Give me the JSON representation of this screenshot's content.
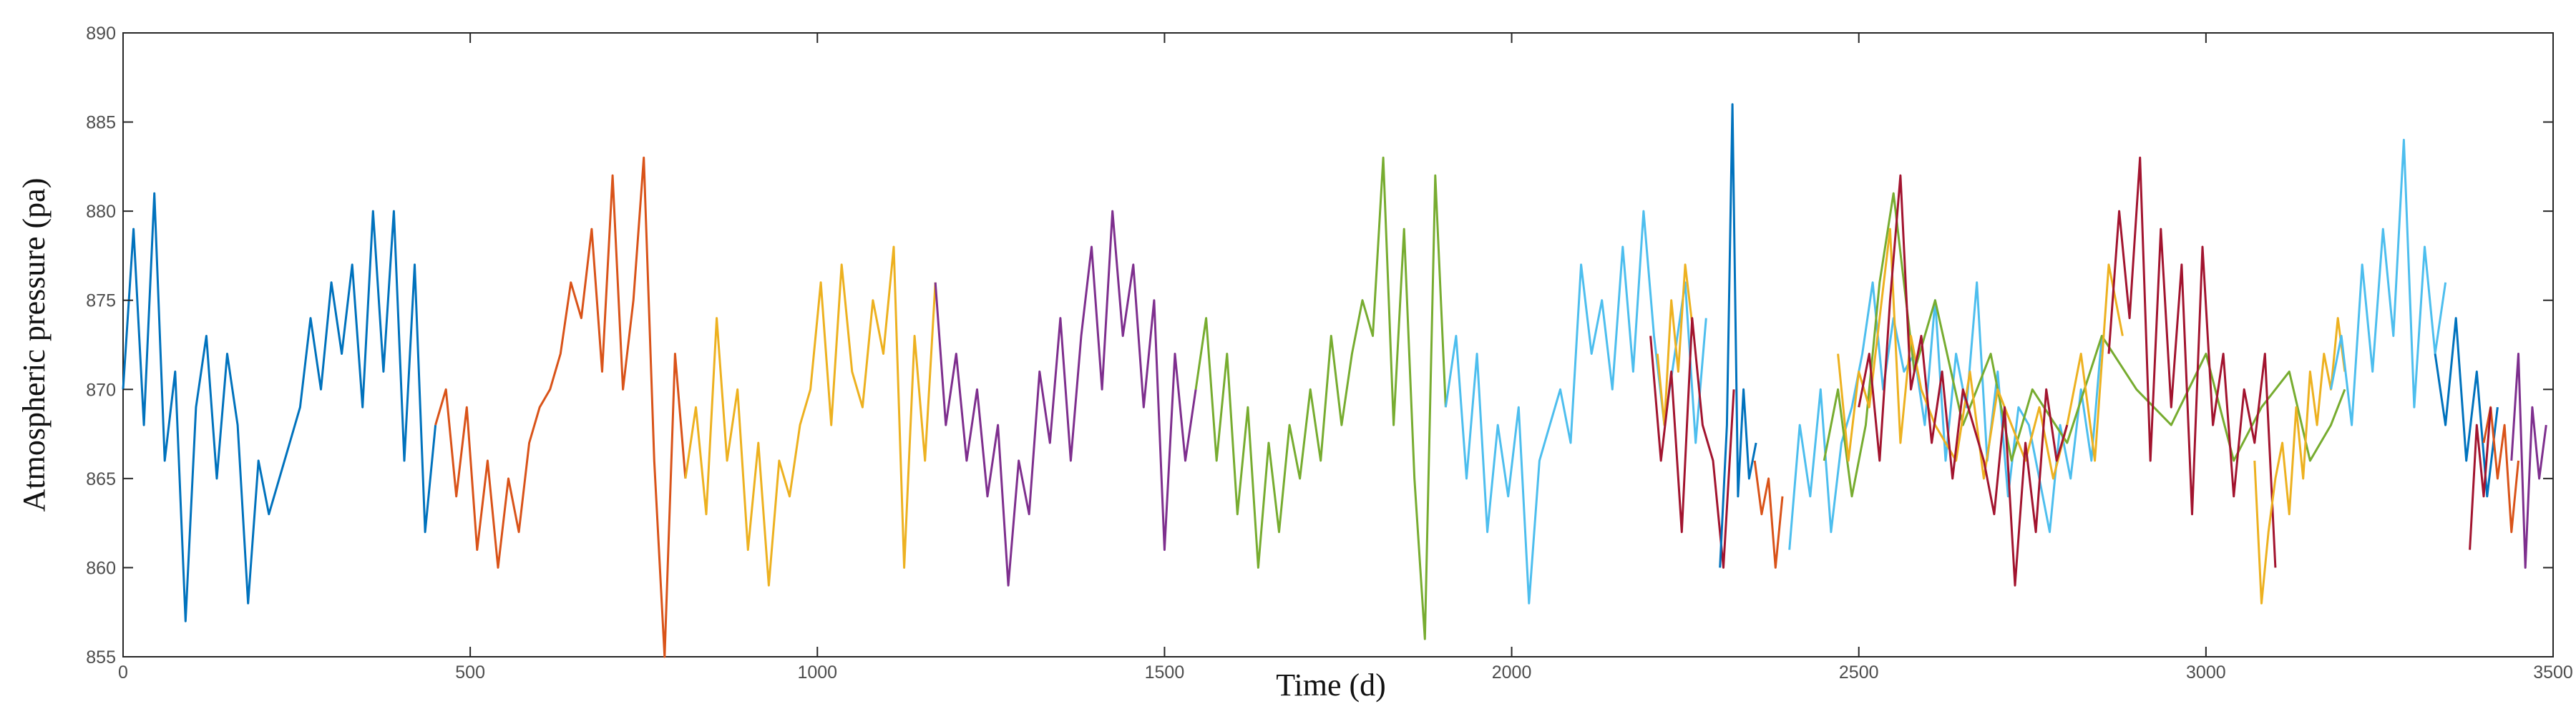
{
  "chart_data": {
    "type": "line",
    "title": "",
    "xlabel": "Time (d)",
    "ylabel": "Atmospheric pressure (pa)",
    "xlim": [
      0,
      3500
    ],
    "ylim": [
      855,
      890
    ],
    "xticks": [
      0,
      500,
      1000,
      1500,
      2000,
      2500,
      3000,
      3500
    ],
    "yticks": [
      855,
      860,
      865,
      870,
      875,
      880,
      885,
      890
    ],
    "grid": false,
    "legend": "none",
    "series": [
      {
        "color": "#0072BD",
        "x": [
          0,
          15,
          30,
          45,
          60,
          75,
          90,
          105,
          120,
          135,
          150,
          165,
          180,
          195,
          210,
          225,
          240,
          255,
          270,
          285,
          300,
          315,
          330,
          345,
          360,
          375,
          390,
          405,
          420,
          435,
          450
        ],
        "y": [
          870,
          879,
          868,
          881,
          866,
          871,
          857,
          869,
          873,
          865,
          872,
          868,
          858,
          866,
          863,
          865,
          867,
          869,
          874,
          870,
          876,
          872,
          877,
          869,
          880,
          871,
          880,
          866,
          877,
          862,
          868
        ]
      },
      {
        "color": "#D95319",
        "x": [
          450,
          465,
          480,
          495,
          510,
          525,
          540,
          555,
          570,
          585,
          600,
          615,
          630,
          645,
          660,
          675,
          690,
          705,
          720,
          735,
          750,
          765,
          780,
          795,
          810
        ],
        "y": [
          868,
          870,
          864,
          869,
          861,
          866,
          860,
          865,
          862,
          867,
          869,
          870,
          872,
          876,
          874,
          879,
          871,
          882,
          870,
          875,
          883,
          866,
          855,
          872,
          865
        ]
      },
      {
        "color": "#EDB120",
        "x": [
          810,
          825,
          840,
          855,
          870,
          885,
          900,
          915,
          930,
          945,
          960,
          975,
          990,
          1005,
          1020,
          1035,
          1050,
          1065,
          1080,
          1095,
          1110,
          1125,
          1140,
          1155,
          1170
        ],
        "y": [
          865,
          869,
          863,
          874,
          866,
          870,
          861,
          867,
          859,
          866,
          864,
          868,
          870,
          876,
          868,
          877,
          871,
          869,
          875,
          872,
          878,
          860,
          873,
          866,
          876
        ]
      },
      {
        "color": "#7E2F8E",
        "x": [
          1170,
          1185,
          1200,
          1215,
          1230,
          1245,
          1260,
          1275,
          1290,
          1305,
          1320,
          1335,
          1350,
          1365,
          1380,
          1395,
          1410,
          1425,
          1440,
          1455,
          1470,
          1485,
          1500,
          1515,
          1530,
          1545
        ],
        "y": [
          876,
          868,
          872,
          866,
          870,
          864,
          868,
          859,
          866,
          863,
          871,
          867,
          874,
          866,
          873,
          878,
          870,
          880,
          873,
          877,
          869,
          875,
          861,
          872,
          866,
          870
        ]
      },
      {
        "color": "#77AC30",
        "x": [
          1545,
          1560,
          1575,
          1590,
          1605,
          1620,
          1635,
          1650,
          1665,
          1680,
          1695,
          1710,
          1725,
          1740,
          1755,
          1770,
          1785,
          1800,
          1815,
          1830,
          1845,
          1860,
          1875,
          1890,
          1905
        ],
        "y": [
          870,
          874,
          866,
          872,
          863,
          869,
          860,
          867,
          862,
          868,
          865,
          870,
          866,
          873,
          868,
          872,
          875,
          873,
          883,
          868,
          879,
          865,
          856,
          882,
          869
        ]
      },
      {
        "color": "#4DBEEE",
        "x": [
          1905,
          1920,
          1935,
          1950,
          1965,
          1980,
          1995,
          2010,
          2025,
          2040,
          2055,
          2070,
          2085,
          2100,
          2115,
          2130,
          2145,
          2160,
          2175,
          2190,
          2205,
          2220,
          2235,
          2250,
          2265,
          2280
        ],
        "y": [
          869,
          873,
          865,
          872,
          862,
          868,
          864,
          869,
          858,
          866,
          868,
          870,
          867,
          877,
          872,
          875,
          870,
          878,
          871,
          880,
          873,
          868,
          872,
          876,
          867,
          874
        ]
      },
      {
        "color": "#EDB120",
        "x": [
          2210,
          2220,
          2230,
          2240,
          2250,
          2262
        ],
        "y": [
          872,
          868,
          875,
          871,
          877,
          873
        ]
      },
      {
        "color": "#A2142F",
        "x": [
          2200,
          2215,
          2230,
          2245,
          2260,
          2275,
          2290,
          2305,
          2320
        ],
        "y": [
          873,
          866,
          871,
          862,
          874,
          868,
          866,
          860,
          870
        ]
      },
      {
        "color": "#0072BD",
        "x": [
          2300,
          2310,
          2318,
          2326,
          2334,
          2342,
          2352
        ],
        "y": [
          860,
          868,
          886,
          864,
          870,
          865,
          867
        ]
      },
      {
        "color": "#D95319",
        "x": [
          2350,
          2360,
          2370,
          2380,
          2390
        ],
        "y": [
          866,
          863,
          865,
          860,
          864
        ]
      },
      {
        "color": "#4DBEEE",
        "x": [
          2400,
          2415,
          2430,
          2445,
          2460,
          2475,
          2490,
          2505,
          2520,
          2535,
          2550,
          2565,
          2580,
          2595,
          2610,
          2625,
          2640,
          2655,
          2670,
          2685,
          2700,
          2715,
          2730,
          2745,
          2760,
          2775,
          2790,
          2805,
          2820,
          2835,
          2850
        ],
        "y": [
          861,
          868,
          864,
          870,
          862,
          867,
          869,
          872,
          876,
          870,
          874,
          871,
          872,
          868,
          875,
          866,
          872,
          869,
          876,
          866,
          871,
          864,
          869,
          868,
          865,
          862,
          868,
          865,
          870,
          866,
          873
        ]
      },
      {
        "color": "#77AC30",
        "x": [
          2450,
          2470,
          2490,
          2510,
          2530,
          2550,
          2580,
          2610,
          2650,
          2690,
          2720,
          2750,
          2800,
          2850,
          2900,
          2950,
          3000,
          3040,
          3080,
          3120,
          3150,
          3180,
          3200
        ],
        "y": [
          866,
          870,
          864,
          868,
          876,
          881,
          871,
          875,
          868,
          872,
          866,
          870,
          867,
          873,
          870,
          868,
          872,
          866,
          869,
          871,
          866,
          868,
          870
        ]
      },
      {
        "color": "#EDB120",
        "x": [
          2470,
          2485,
          2500,
          2515,
          2530,
          2545,
          2560,
          2575,
          2590,
          2610,
          2640,
          2660,
          2680,
          2700,
          2720,
          2740,
          2760,
          2780,
          2800,
          2820,
          2840,
          2860,
          2880
        ],
        "y": [
          872,
          866,
          871,
          869,
          874,
          879,
          867,
          873,
          870,
          868,
          866,
          871,
          865,
          870,
          868,
          866,
          869,
          865,
          868,
          872,
          866,
          877,
          873
        ]
      },
      {
        "color": "#A2142F",
        "x": [
          2500,
          2515,
          2530,
          2545,
          2560,
          2575,
          2590,
          2605,
          2620,
          2635,
          2650,
          2665,
          2680,
          2695,
          2710,
          2725,
          2740,
          2755,
          2770,
          2785,
          2800
        ],
        "y": [
          869,
          872,
          866,
          875,
          882,
          870,
          873,
          867,
          871,
          865,
          870,
          868,
          866,
          863,
          869,
          859,
          867,
          862,
          870,
          866,
          868
        ]
      },
      {
        "color": "#A2142F",
        "x": [
          2860,
          2875,
          2890,
          2905,
          2920,
          2935,
          2950,
          2965,
          2980,
          2995,
          3010,
          3025,
          3040,
          3055,
          3070,
          3085,
          3100
        ],
        "y": [
          872,
          880,
          874,
          883,
          866,
          879,
          869,
          877,
          863,
          878,
          868,
          872,
          864,
          870,
          867,
          872,
          860
        ]
      },
      {
        "color": "#EDB120",
        "x": [
          3070,
          3080,
          3090,
          3100,
          3110,
          3120,
          3130,
          3140,
          3150,
          3160,
          3170,
          3180,
          3190,
          3200
        ],
        "y": [
          866,
          858,
          862,
          865,
          867,
          863,
          869,
          865,
          871,
          868,
          872,
          870,
          874,
          871
        ]
      },
      {
        "color": "#4DBEEE",
        "x": [
          3180,
          3195,
          3210,
          3225,
          3240,
          3255,
          3270,
          3285,
          3300,
          3315,
          3330,
          3345
        ],
        "y": [
          870,
          873,
          868,
          877,
          871,
          879,
          873,
          884,
          869,
          878,
          872,
          876
        ]
      },
      {
        "color": "#0072BD",
        "x": [
          3330,
          3345,
          3360,
          3375,
          3390,
          3405,
          3420
        ],
        "y": [
          872,
          868,
          874,
          866,
          871,
          864,
          869
        ]
      },
      {
        "color": "#D95319",
        "x": [
          3400,
          3410,
          3420,
          3430,
          3440,
          3450
        ],
        "y": [
          867,
          869,
          865,
          868,
          862,
          866
        ]
      },
      {
        "color": "#A2142F",
        "x": [
          3380,
          3390,
          3400,
          3410
        ],
        "y": [
          861,
          868,
          864,
          869
        ]
      },
      {
        "color": "#7E2F8E",
        "x": [
          3440,
          3450,
          3460,
          3470,
          3480,
          3490
        ],
        "y": [
          866,
          872,
          860,
          869,
          865,
          868
        ]
      }
    ]
  }
}
